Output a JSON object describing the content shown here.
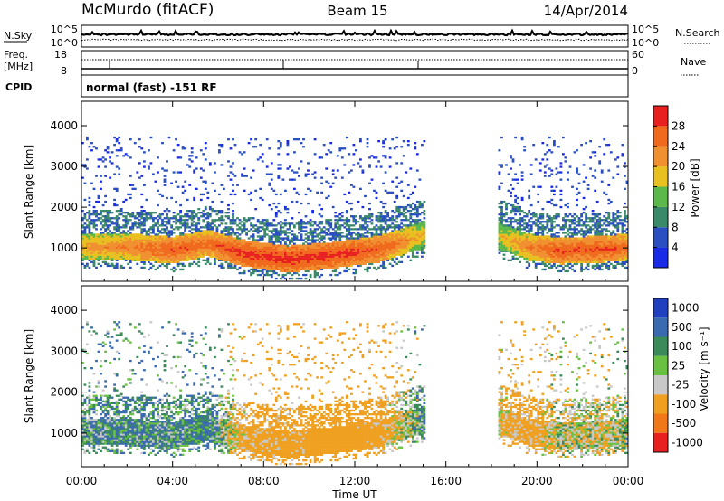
{
  "header": {
    "station": "McMurdo (fitACF)",
    "beam": "Beam 15",
    "date": "14/Apr/2014"
  },
  "status_panel": {
    "nsky_label": "N.Sky",
    "nsky_ticks": [
      "10^5",
      "10^0"
    ],
    "nsearch_label": "N.Search",
    "nsearch_ticks": [
      "10^5",
      "10^0"
    ],
    "freq_label_1": "Freq.",
    "freq_label_2": "[MHz]",
    "freq_ticks": [
      "18",
      "8"
    ],
    "nave_label": "Nave",
    "nave_ticks": [
      "60",
      "0"
    ],
    "cpid_label": "CPID",
    "cpid_value": "normal (fast) -151 RF"
  },
  "axes": {
    "xlabel": "Time UT",
    "xticks": [
      "00:00",
      "04:00",
      "08:00",
      "12:00",
      "16:00",
      "20:00",
      "00:00"
    ],
    "ylabel": "Slant Range [km]",
    "yticks": [
      "1000",
      "2000",
      "3000",
      "4000"
    ]
  },
  "power_scale": {
    "label": "Power [dB]",
    "ticks": [
      "4",
      "8",
      "12",
      "16",
      "20",
      "24",
      "28"
    ],
    "colors": [
      "#1a2be8",
      "#2a4fc0",
      "#3a8a6a",
      "#5cb84a",
      "#e8c020",
      "#f09030",
      "#f06a1e",
      "#e82020"
    ]
  },
  "velocity_scale": {
    "label": "Velocity [m s⁻¹]",
    "ticks": [
      "1000",
      "500",
      "100",
      "25",
      "-25",
      "-100",
      "-500",
      "-1000"
    ],
    "colors": [
      "#2040c0",
      "#3a6ab0",
      "#3a8a5a",
      "#6ac040",
      "#c8c8c8",
      "#f0a020",
      "#f07818",
      "#e82020"
    ]
  },
  "chart_data": [
    {
      "type": "heatmap",
      "title": "Power",
      "xlabel": "Time UT",
      "ylabel": "Slant Range [km]",
      "xlim": [
        0,
        24
      ],
      "ylim": [
        180,
        4600
      ],
      "colorbar_label": "Power [dB]",
      "colorbar_ticks": [
        4,
        8,
        12,
        16,
        20,
        24,
        28
      ],
      "x": [
        0,
        2,
        4,
        5.5,
        7,
        9,
        11,
        13,
        15,
        16.2,
        18.2,
        19.5,
        21,
        23,
        24
      ],
      "echo_band_center_km": [
        1000,
        1000,
        920,
        1100,
        850,
        700,
        800,
        950,
        1300,
        null,
        1300,
        1000,
        900,
        950,
        1000
      ],
      "peak_power_db": [
        22,
        24,
        28,
        26,
        30,
        30,
        30,
        28,
        20,
        null,
        18,
        24,
        28,
        28,
        26
      ]
    },
    {
      "type": "heatmap",
      "title": "Velocity",
      "xlabel": "Time UT",
      "ylabel": "Slant Range [km]",
      "xlim": [
        0,
        24
      ],
      "ylim": [
        180,
        4600
      ],
      "colorbar_label": "Velocity [m s⁻¹]",
      "colorbar_ticks": [
        1000,
        500,
        100,
        25,
        -25,
        -100,
        -500,
        -1000
      ],
      "x": [
        0,
        2,
        4,
        5.5,
        7,
        9,
        11,
        13,
        15,
        16.2,
        18.2,
        19.5,
        21,
        23,
        24
      ],
      "typical_velocity_ms": [
        50,
        80,
        60,
        100,
        -150,
        -200,
        -250,
        -200,
        50,
        null,
        -100,
        -200,
        -50,
        -80,
        0
      ]
    }
  ]
}
